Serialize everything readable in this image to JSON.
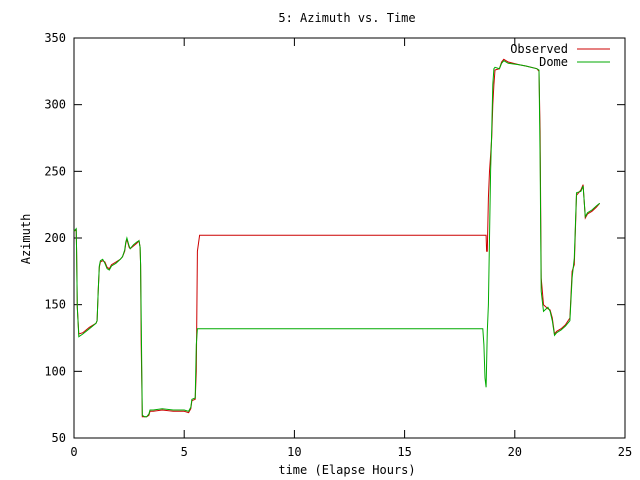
{
  "chart_data": {
    "type": "line",
    "title": "5: Azimuth vs. Time",
    "xlabel": "time (Elapse Hours)",
    "ylabel": "Azimuth",
    "xlim": [
      0,
      25
    ],
    "ylim": [
      50,
      350
    ],
    "x_ticks": [
      "0",
      "5",
      "10",
      "15",
      "20",
      "25"
    ],
    "y_ticks": [
      "50",
      "100",
      "150",
      "200",
      "250",
      "300",
      "350"
    ],
    "grid": false,
    "legend_position": "top-right",
    "series": [
      {
        "name": "Observed",
        "color": "#cc0000",
        "points": [
          [
            0.0,
            205
          ],
          [
            0.1,
            206
          ],
          [
            0.12,
            190
          ],
          [
            0.15,
            148
          ],
          [
            0.22,
            128
          ],
          [
            0.4,
            129
          ],
          [
            0.7,
            133
          ],
          [
            1.0,
            136
          ],
          [
            1.05,
            138
          ],
          [
            1.1,
            160
          ],
          [
            1.15,
            178
          ],
          [
            1.2,
            182
          ],
          [
            1.3,
            183
          ],
          [
            1.4,
            182
          ],
          [
            1.5,
            178
          ],
          [
            1.6,
            177
          ],
          [
            1.7,
            180
          ],
          [
            1.9,
            182
          ],
          [
            2.1,
            184
          ],
          [
            2.2,
            186
          ],
          [
            2.3,
            190
          ],
          [
            2.35,
            196
          ],
          [
            2.4,
            199
          ],
          [
            2.5,
            193
          ],
          [
            2.55,
            192
          ],
          [
            2.7,
            194
          ],
          [
            2.85,
            196
          ],
          [
            2.95,
            198
          ],
          [
            3.0,
            193
          ],
          [
            3.02,
            180
          ],
          [
            3.05,
            120
          ],
          [
            3.1,
            66
          ],
          [
            3.2,
            66
          ],
          [
            3.3,
            66
          ],
          [
            3.4,
            67
          ],
          [
            3.45,
            70
          ],
          [
            3.6,
            70
          ],
          [
            4.0,
            71
          ],
          [
            4.5,
            70
          ],
          [
            5.0,
            70
          ],
          [
            5.2,
            69
          ],
          [
            5.3,
            72
          ],
          [
            5.35,
            78
          ],
          [
            5.5,
            79
          ],
          [
            5.55,
            100
          ],
          [
            5.6,
            190
          ],
          [
            5.7,
            202
          ],
          [
            10.0,
            202
          ],
          [
            15.0,
            202
          ],
          [
            18.7,
            202
          ],
          [
            18.72,
            190
          ],
          [
            18.75,
            190
          ],
          [
            18.8,
            230
          ],
          [
            18.85,
            250
          ],
          [
            18.9,
            262
          ],
          [
            18.95,
            275
          ],
          [
            19.0,
            300
          ],
          [
            19.05,
            315
          ],
          [
            19.1,
            326
          ],
          [
            19.3,
            327
          ],
          [
            19.4,
            332
          ],
          [
            19.5,
            334
          ],
          [
            19.7,
            332
          ],
          [
            20.2,
            330
          ],
          [
            20.5,
            329
          ],
          [
            21.0,
            327
          ],
          [
            21.1,
            325
          ],
          [
            21.15,
            280
          ],
          [
            21.2,
            170
          ],
          [
            21.3,
            150
          ],
          [
            21.5,
            147
          ],
          [
            21.6,
            146
          ],
          [
            21.7,
            140
          ],
          [
            21.8,
            128
          ],
          [
            21.9,
            130
          ],
          [
            22.1,
            132
          ],
          [
            22.3,
            135
          ],
          [
            22.5,
            140
          ],
          [
            22.6,
            175
          ],
          [
            22.7,
            180
          ],
          [
            22.8,
            232
          ],
          [
            23.0,
            236
          ],
          [
            23.1,
            240
          ],
          [
            23.2,
            215
          ],
          [
            23.3,
            218
          ],
          [
            23.5,
            220
          ],
          [
            23.7,
            223
          ],
          [
            23.85,
            226
          ]
        ]
      },
      {
        "name": "Dome",
        "color": "#00aa00",
        "points": [
          [
            0.0,
            205
          ],
          [
            0.1,
            207
          ],
          [
            0.12,
            190
          ],
          [
            0.15,
            148
          ],
          [
            0.22,
            126
          ],
          [
            0.4,
            128
          ],
          [
            0.7,
            132
          ],
          [
            1.0,
            136
          ],
          [
            1.05,
            138
          ],
          [
            1.1,
            160
          ],
          [
            1.15,
            179
          ],
          [
            1.2,
            183
          ],
          [
            1.3,
            184
          ],
          [
            1.4,
            181
          ],
          [
            1.5,
            177
          ],
          [
            1.6,
            176
          ],
          [
            1.7,
            179
          ],
          [
            1.9,
            181
          ],
          [
            2.1,
            184
          ],
          [
            2.2,
            186
          ],
          [
            2.3,
            191
          ],
          [
            2.35,
            197
          ],
          [
            2.4,
            200
          ],
          [
            2.5,
            194
          ],
          [
            2.55,
            192
          ],
          [
            2.7,
            195
          ],
          [
            2.85,
            197
          ],
          [
            2.95,
            198
          ],
          [
            3.0,
            193
          ],
          [
            3.02,
            180
          ],
          [
            3.05,
            140
          ],
          [
            3.1,
            67
          ],
          [
            3.2,
            66
          ],
          [
            3.3,
            66
          ],
          [
            3.4,
            68
          ],
          [
            3.45,
            71
          ],
          [
            3.6,
            71
          ],
          [
            4.0,
            72
          ],
          [
            4.5,
            71
          ],
          [
            5.0,
            71
          ],
          [
            5.2,
            70
          ],
          [
            5.3,
            73
          ],
          [
            5.35,
            79
          ],
          [
            5.5,
            80
          ],
          [
            5.55,
            120
          ],
          [
            5.6,
            132
          ],
          [
            5.7,
            132
          ],
          [
            10.0,
            132
          ],
          [
            15.0,
            132
          ],
          [
            18.5,
            132
          ],
          [
            18.55,
            132
          ],
          [
            18.6,
            120
          ],
          [
            18.65,
            95
          ],
          [
            18.7,
            88
          ],
          [
            18.75,
            130
          ],
          [
            18.8,
            150
          ],
          [
            18.85,
            200
          ],
          [
            18.9,
            250
          ],
          [
            18.95,
            280
          ],
          [
            19.0,
            315
          ],
          [
            19.05,
            327
          ],
          [
            19.1,
            328
          ],
          [
            19.3,
            327
          ],
          [
            19.4,
            331
          ],
          [
            19.5,
            333
          ],
          [
            19.7,
            331
          ],
          [
            20.2,
            330
          ],
          [
            20.5,
            329
          ],
          [
            21.0,
            327
          ],
          [
            21.1,
            326
          ],
          [
            21.15,
            260
          ],
          [
            21.2,
            160
          ],
          [
            21.3,
            145
          ],
          [
            21.5,
            148
          ],
          [
            21.6,
            145
          ],
          [
            21.7,
            138
          ],
          [
            21.8,
            127
          ],
          [
            21.9,
            129
          ],
          [
            22.1,
            131
          ],
          [
            22.3,
            134
          ],
          [
            22.5,
            138
          ],
          [
            22.6,
            170
          ],
          [
            22.7,
            185
          ],
          [
            22.8,
            234
          ],
          [
            23.0,
            235
          ],
          [
            23.1,
            239
          ],
          [
            23.2,
            216
          ],
          [
            23.3,
            219
          ],
          [
            23.5,
            221
          ],
          [
            23.7,
            224
          ],
          [
            23.85,
            226
          ]
        ]
      }
    ]
  }
}
